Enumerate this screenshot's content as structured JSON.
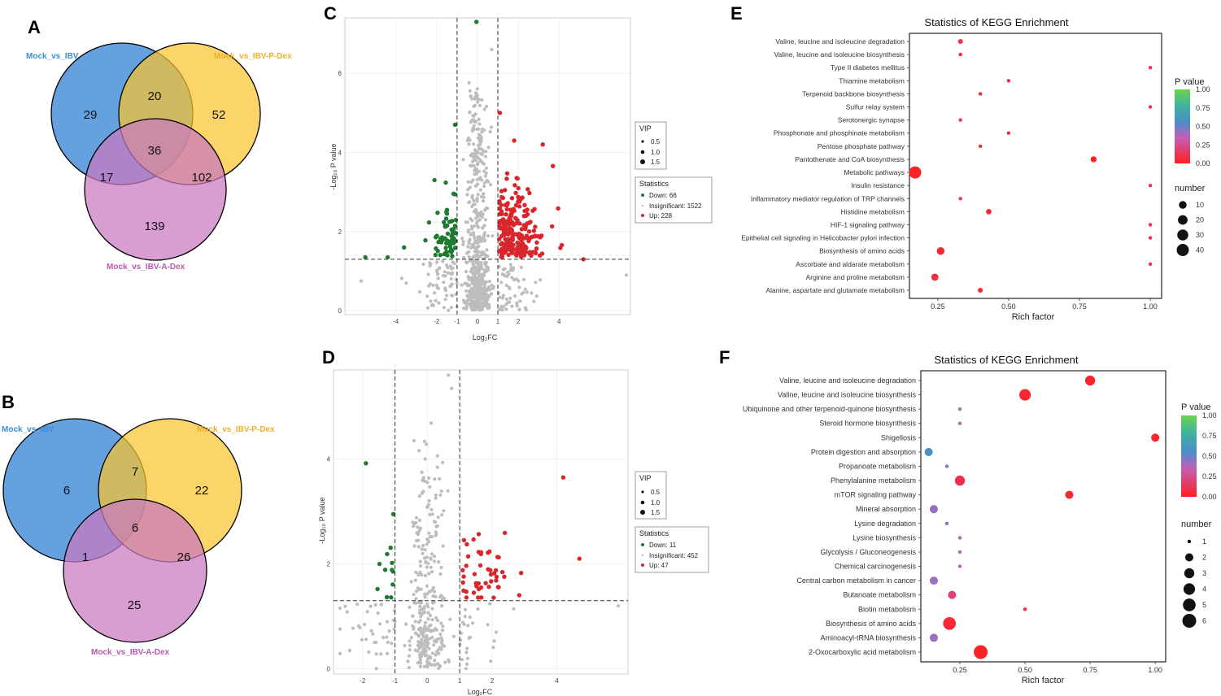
{
  "colors": {
    "venn_blue": "#4A90D9",
    "venn_yellow": "#F9C431",
    "venn_pink": "#C978C0",
    "down": "#1E7A31",
    "insig": "#BDBDBD",
    "up": "#D7262C",
    "label_blue": "#3B8ED8",
    "label_yellow": "#EDB12B",
    "label_pink": "#B858B0"
  },
  "chart_data": [
    {
      "panel": "A",
      "type": "venn",
      "sets": [
        "Mock_vs_IBV",
        "Mock_vs_IBV-P-Dex",
        "Mock_vs_IBV-A-Dex"
      ],
      "regions": {
        "a_only": "29",
        "b_only": "52",
        "c_only": "139",
        "ab": "20",
        "ac": "17",
        "bc": "102",
        "abc": "36"
      }
    },
    {
      "panel": "B",
      "type": "venn",
      "sets": [
        "Mock_vs_IBV",
        "Mock_vs_IBV-P-Dex",
        "Mock_vs_IBV-A-Dex"
      ],
      "regions": {
        "a_only": "6",
        "b_only": "22",
        "c_only": "25",
        "ab": "7",
        "ac": "1",
        "bc": "26",
        "abc": "6"
      }
    },
    {
      "panel": "C",
      "type": "scatter",
      "xlabel": "Log₂FC",
      "ylabel": "-Log₁₀ P value",
      "xlim": [
        -6.5,
        7.5
      ],
      "ylim": [
        -0.1,
        7.4
      ],
      "xticks": [
        -4,
        -2,
        -1,
        0,
        1,
        2,
        4
      ],
      "yticks": [
        0,
        2,
        4,
        6
      ],
      "fc_cut": [
        -1,
        1
      ],
      "p_cut": 1.3,
      "legend_vip_title": "VIP",
      "vip_sizes": [
        "0.5",
        "1.0",
        "1.5"
      ],
      "legend_stats_title": "Statistics",
      "stats_labels": [
        "Down: 66",
        "Insignificant: 1522",
        "Up: 228"
      ],
      "counts_drawn": {
        "down": 66,
        "insig": 700,
        "up": 228
      },
      "seed": 11,
      "highlight": [
        {
          "x": -0.05,
          "y": 7.3,
          "cls": "down"
        },
        {
          "x": 0.7,
          "y": 6.6,
          "cls": "insig"
        },
        {
          "x": -1.1,
          "y": 4.7,
          "cls": "down"
        },
        {
          "x": 1.1,
          "y": 5.0,
          "cls": "up"
        },
        {
          "x": 1.8,
          "y": 4.3,
          "cls": "up"
        },
        {
          "x": 3.2,
          "y": 4.2,
          "cls": "up"
        },
        {
          "x": -4.4,
          "y": 1.35,
          "cls": "down"
        },
        {
          "x": -5.5,
          "y": 1.35,
          "cls": "down"
        },
        {
          "x": -3.6,
          "y": 1.6,
          "cls": "down"
        },
        {
          "x": 5.2,
          "y": 1.3,
          "cls": "up"
        },
        {
          "x": -5.7,
          "y": 0.75,
          "cls": "insig"
        },
        {
          "x": 7.3,
          "y": 0.9,
          "cls": "insig"
        }
      ]
    },
    {
      "panel": "D",
      "type": "scatter",
      "xlabel": "Log₂FC",
      "ylabel": "-Log₁₀ P value",
      "xlim": [
        -2.9,
        6.2
      ],
      "ylim": [
        -0.1,
        5.7
      ],
      "xticks": [
        -2,
        -1,
        0,
        1,
        2,
        4
      ],
      "yticks": [
        0,
        2,
        4
      ],
      "fc_cut": [
        -1,
        1
      ],
      "p_cut": 1.3,
      "legend_vip_title": "VIP",
      "vip_sizes": [
        "0.5",
        "1.0",
        "1.5"
      ],
      "legend_stats_title": "Statistics",
      "stats_labels": [
        "Down: 11",
        "Insignificant: 452",
        "Up: 47"
      ],
      "counts_drawn": {
        "down": 11,
        "insig": 360,
        "up": 47
      },
      "seed": 23,
      "highlight": [
        {
          "x": -1.9,
          "y": 3.92,
          "cls": "down"
        },
        {
          "x": -1.05,
          "y": 2.95,
          "cls": "down"
        },
        {
          "x": 4.2,
          "y": 3.65,
          "cls": "up"
        },
        {
          "x": 0.65,
          "y": 5.6,
          "cls": "insig"
        },
        {
          "x": 0.75,
          "y": 5.35,
          "cls": "insig"
        },
        {
          "x": 4.7,
          "y": 2.1,
          "cls": "up"
        },
        {
          "x": 5.9,
          "y": 1.2,
          "cls": "insig"
        },
        {
          "x": -2.4,
          "y": 0.35,
          "cls": "insig"
        }
      ]
    },
    {
      "panel": "E",
      "type": "scatter",
      "title": "Statistics of KEGG Enrichment",
      "xlabel": "Rich factor",
      "xlim": [
        0.15,
        1.04
      ],
      "xticks": [
        {
          "v": 0.25,
          "label": "0.25"
        },
        {
          "v": 0.5,
          "label": "0.50"
        },
        {
          "v": 0.75,
          "label": "0.75"
        },
        {
          "v": 1.0,
          "label": "1.00"
        }
      ],
      "pvalue_title": "P value",
      "pvalue_ticks": [
        "1.00",
        "0.75",
        "0.50",
        "0.25",
        "0.00"
      ],
      "number_title": "number",
      "number_sizes": [
        10,
        20,
        30,
        40
      ],
      "size_range": [
        1,
        40
      ],
      "terms": [
        {
          "name": "Valine, leucine and isoleucine degradation",
          "rich": 0.33,
          "p": 0.12,
          "n": 2
        },
        {
          "name": "Valine, leucine and isoleucine biosynthesis",
          "rich": 0.33,
          "p": 0.05,
          "n": 1
        },
        {
          "name": "Type II diabetes mellitus",
          "rich": 1.0,
          "p": 0.1,
          "n": 1
        },
        {
          "name": "Thiamine metabolism",
          "rich": 0.5,
          "p": 0.05,
          "n": 1
        },
        {
          "name": "Terpenoid backbone biosynthesis",
          "rich": 0.4,
          "p": 0.06,
          "n": 1
        },
        {
          "name": "Sulfur relay system",
          "rich": 1.0,
          "p": 0.1,
          "n": 1
        },
        {
          "name": "Serotonergic synapse",
          "rich": 0.33,
          "p": 0.12,
          "n": 1
        },
        {
          "name": "Phosphonate and phosphinate metabolism",
          "rich": 0.5,
          "p": 0.05,
          "n": 1
        },
        {
          "name": "Pentose phosphate pathway",
          "rich": 0.4,
          "p": 0.06,
          "n": 1
        },
        {
          "name": "Pantothenate and CoA biosynthesis",
          "rich": 0.8,
          "p": 0.03,
          "n": 4
        },
        {
          "name": "Metabolic pathways",
          "rich": 0.17,
          "p": 0.02,
          "n": 40
        },
        {
          "name": "Insulin resistance",
          "rich": 1.0,
          "p": 0.1,
          "n": 1
        },
        {
          "name": "Inflammatory mediator regulation of TRP channels",
          "rich": 0.33,
          "p": 0.12,
          "n": 1
        },
        {
          "name": "Histidine metabolism",
          "rich": 0.43,
          "p": 0.06,
          "n": 3
        },
        {
          "name": "HIF-1 signaling pathway",
          "rich": 1.0,
          "p": 0.1,
          "n": 1
        },
        {
          "name": "Epithelial cell signaling in Helicobacter pylori infection",
          "rich": 1.0,
          "p": 0.1,
          "n": 1
        },
        {
          "name": "Biosynthesis of amino acids",
          "rich": 0.26,
          "p": 0.04,
          "n": 10
        },
        {
          "name": "Ascorbate and aldarate metabolism",
          "rich": 1.0,
          "p": 0.1,
          "n": 1
        },
        {
          "name": "Arginine and proline metabolism",
          "rich": 0.24,
          "p": 0.08,
          "n": 8
        },
        {
          "name": "Alanine, aspartate and glutamate metabolism",
          "rich": 0.4,
          "p": 0.06,
          "n": 2
        }
      ]
    },
    {
      "panel": "F",
      "type": "scatter",
      "title": "Statistics of KEGG Enrichment",
      "xlabel": "Rich factor",
      "xlim": [
        0.1,
        1.04
      ],
      "xticks": [
        {
          "v": 0.25,
          "label": "0.25"
        },
        {
          "v": 0.5,
          "label": "0.50"
        },
        {
          "v": 0.75,
          "label": "0.75"
        },
        {
          "v": 1.0,
          "label": "1.00"
        }
      ],
      "pvalue_title": "P value",
      "pvalue_ticks": [
        "1.00",
        "0.75",
        "0.50",
        "0.25",
        "0.00"
      ],
      "number_title": "number",
      "number_sizes": [
        1,
        2,
        3,
        4,
        5,
        6
      ],
      "size_range": [
        1,
        6
      ],
      "terms": [
        {
          "name": "Valine, leucine and isoleucine degradation",
          "rich": 0.75,
          "p": 0.03,
          "n": 3
        },
        {
          "name": "Valine, leucine and isoleucine biosynthesis",
          "rich": 0.5,
          "p": 0.04,
          "n": 4
        },
        {
          "name": "Ubiquinone and other terpenoid-quinone biosynthesis",
          "rich": 0.25,
          "p": 0.38,
          "n": 1
        },
        {
          "name": "Steroid hormone biosynthesis",
          "rich": 0.25,
          "p": 0.38,
          "n": 1
        },
        {
          "name": "Shigellosis",
          "rich": 1.0,
          "p": 0.04,
          "n": 2
        },
        {
          "name": "Protein digestion and absorption",
          "rich": 0.13,
          "p": 0.6,
          "n": 2
        },
        {
          "name": "Propanoate metabolism",
          "rich": 0.2,
          "p": 0.45,
          "n": 1
        },
        {
          "name": "Phenylalanine metabolism",
          "rich": 0.25,
          "p": 0.1,
          "n": 3
        },
        {
          "name": "mTOR signaling pathway",
          "rich": 0.67,
          "p": 0.04,
          "n": 2
        },
        {
          "name": "Mineral absorption",
          "rich": 0.15,
          "p": 0.42,
          "n": 2
        },
        {
          "name": "Lysine degradation",
          "rich": 0.2,
          "p": 0.45,
          "n": 1
        },
        {
          "name": "Lysine biosynthesis",
          "rich": 0.25,
          "p": 0.38,
          "n": 1
        },
        {
          "name": "Glycolysis / Gluconeogenesis",
          "rich": 0.25,
          "p": 0.38,
          "n": 1
        },
        {
          "name": "Chemical carcinogenesis",
          "rich": 0.25,
          "p": 0.38,
          "n": 1
        },
        {
          "name": "Central carbon metabolism in cancer",
          "rich": 0.15,
          "p": 0.42,
          "n": 2
        },
        {
          "name": "Butanoate metabolism",
          "rich": 0.22,
          "p": 0.2,
          "n": 2
        },
        {
          "name": "Biotin metabolism",
          "rich": 0.5,
          "p": 0.08,
          "n": 1
        },
        {
          "name": "Biosynthesis of amino acids",
          "rich": 0.21,
          "p": 0.05,
          "n": 5
        },
        {
          "name": "Aminoacyl-tRNA biosynthesis",
          "rich": 0.15,
          "p": 0.42,
          "n": 2
        },
        {
          "name": "2-Oxocarboxylic acid metabolism",
          "rich": 0.33,
          "p": 0.02,
          "n": 6
        }
      ]
    }
  ]
}
